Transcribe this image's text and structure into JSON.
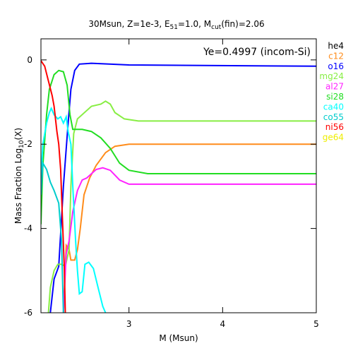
{
  "chart_data": {
    "type": "line",
    "title": {
      "pre": "30Msun, Z=1e-3, E",
      "sub1": "51",
      "mid": "=1.0, M",
      "sub2": "cut",
      "post": "(fin)=2.06"
    },
    "xlabel": "M (Msun)",
    "ylabel": {
      "pre": "Mass Fraction Log",
      "sub": "10",
      "post": "(X)"
    },
    "annotation": "Ye=0.4997 (incom-Si)",
    "xlim": [
      2.06,
      5
    ],
    "ylim": [
      -6,
      0.5
    ],
    "xticks": [
      3,
      4,
      5
    ],
    "yticks": [
      0,
      -2,
      -4,
      -6
    ],
    "series": [
      {
        "name": "he4",
        "color": "#000000",
        "points": []
      },
      {
        "name": "c12",
        "color": "#ff8c1a",
        "points": [
          [
            2.3,
            -6
          ],
          [
            2.33,
            -4.4
          ],
          [
            2.36,
            -4.5
          ],
          [
            2.38,
            -4.75
          ],
          [
            2.42,
            -4.75
          ],
          [
            2.45,
            -4.5
          ],
          [
            2.48,
            -4.0
          ],
          [
            2.52,
            -3.2
          ],
          [
            2.58,
            -2.8
          ],
          [
            2.65,
            -2.5
          ],
          [
            2.75,
            -2.2
          ],
          [
            2.85,
            -2.05
          ],
          [
            3.0,
            -2.0
          ],
          [
            5.0,
            -2.0
          ]
        ]
      },
      {
        "name": "o16",
        "color": "#0000ff",
        "points": [
          [
            2.16,
            -6
          ],
          [
            2.2,
            -5.2
          ],
          [
            2.25,
            -4.9
          ],
          [
            2.3,
            -3.0
          ],
          [
            2.35,
            -1.5
          ],
          [
            2.38,
            -0.7
          ],
          [
            2.42,
            -0.25
          ],
          [
            2.47,
            -0.1
          ],
          [
            2.6,
            -0.08
          ],
          [
            3.0,
            -0.12
          ],
          [
            5.0,
            -0.15
          ]
        ]
      },
      {
        "name": "mg24",
        "color": "#88ee44",
        "points": [
          [
            2.14,
            -6
          ],
          [
            2.16,
            -5.4
          ],
          [
            2.2,
            -5.0
          ],
          [
            2.24,
            -4.85
          ],
          [
            2.28,
            -4.85
          ],
          [
            2.32,
            -4.9
          ],
          [
            2.36,
            -4.5
          ],
          [
            2.38,
            -3.0
          ],
          [
            2.41,
            -1.75
          ],
          [
            2.45,
            -1.4
          ],
          [
            2.6,
            -1.1
          ],
          [
            2.7,
            -1.05
          ],
          [
            2.75,
            -0.98
          ],
          [
            2.8,
            -1.05
          ],
          [
            2.85,
            -1.25
          ],
          [
            2.95,
            -1.4
          ],
          [
            3.1,
            -1.45
          ],
          [
            5.0,
            -1.45
          ]
        ]
      },
      {
        "name": "al27",
        "color": "#ff22ff",
        "points": [
          [
            2.3,
            -6
          ],
          [
            2.33,
            -4.6
          ],
          [
            2.36,
            -4.3
          ],
          [
            2.4,
            -3.6
          ],
          [
            2.45,
            -3.1
          ],
          [
            2.5,
            -2.85
          ],
          [
            2.55,
            -2.8
          ],
          [
            2.6,
            -2.7
          ],
          [
            2.65,
            -2.6
          ],
          [
            2.72,
            -2.56
          ],
          [
            2.8,
            -2.62
          ],
          [
            2.9,
            -2.85
          ],
          [
            3.0,
            -2.95
          ],
          [
            5.0,
            -2.95
          ]
        ]
      },
      {
        "name": "si28",
        "color": "#22dd22",
        "points": [
          [
            2.06,
            -3.9
          ],
          [
            2.08,
            -2.5
          ],
          [
            2.12,
            -1.3
          ],
          [
            2.15,
            -0.7
          ],
          [
            2.2,
            -0.35
          ],
          [
            2.25,
            -0.25
          ],
          [
            2.3,
            -0.28
          ],
          [
            2.34,
            -0.6
          ],
          [
            2.37,
            -1.3
          ],
          [
            2.4,
            -1.65
          ],
          [
            2.5,
            -1.65
          ],
          [
            2.6,
            -1.7
          ],
          [
            2.7,
            -1.85
          ],
          [
            2.8,
            -2.1
          ],
          [
            2.9,
            -2.45
          ],
          [
            3.0,
            -2.62
          ],
          [
            3.2,
            -2.7
          ],
          [
            5.0,
            -2.7
          ]
        ]
      },
      {
        "name": "ca40",
        "color": "#00ffff",
        "points": [
          [
            2.06,
            -2.8
          ],
          [
            2.08,
            -2.0
          ],
          [
            2.12,
            -1.5
          ],
          [
            2.15,
            -1.25
          ],
          [
            2.17,
            -1.15
          ],
          [
            2.2,
            -1.3
          ],
          [
            2.24,
            -1.4
          ],
          [
            2.27,
            -1.35
          ],
          [
            2.3,
            -1.5
          ],
          [
            2.33,
            -1.35
          ],
          [
            2.35,
            -1.7
          ],
          [
            2.38,
            -2.0
          ],
          [
            2.4,
            -3.0
          ],
          [
            2.43,
            -4.3
          ],
          [
            2.45,
            -5.0
          ],
          [
            2.47,
            -5.55
          ],
          [
            2.5,
            -5.5
          ],
          [
            2.53,
            -4.85
          ],
          [
            2.57,
            -4.8
          ],
          [
            2.62,
            -4.95
          ],
          [
            2.67,
            -5.4
          ],
          [
            2.72,
            -5.85
          ],
          [
            2.75,
            -6.0
          ]
        ]
      },
      {
        "name": "co55",
        "color": "#00cccc",
        "points": [
          [
            2.06,
            -3.2
          ],
          [
            2.08,
            -2.45
          ],
          [
            2.12,
            -2.6
          ],
          [
            2.16,
            -2.9
          ],
          [
            2.2,
            -3.1
          ],
          [
            2.25,
            -3.4
          ],
          [
            2.28,
            -4.3
          ],
          [
            2.3,
            -6.0
          ]
        ]
      },
      {
        "name": "ni56",
        "color": "#ff0000",
        "points": [
          [
            2.06,
            -0.02
          ],
          [
            2.1,
            -0.15
          ],
          [
            2.14,
            -0.5
          ],
          [
            2.18,
            -0.85
          ],
          [
            2.2,
            -1.1
          ],
          [
            2.23,
            -1.7
          ],
          [
            2.25,
            -2.0
          ],
          [
            2.27,
            -2.6
          ],
          [
            2.29,
            -3.8
          ],
          [
            2.31,
            -5.0
          ],
          [
            2.32,
            -6.0
          ]
        ]
      },
      {
        "name": "ge64",
        "color": "#eeee00",
        "points": []
      }
    ]
  }
}
